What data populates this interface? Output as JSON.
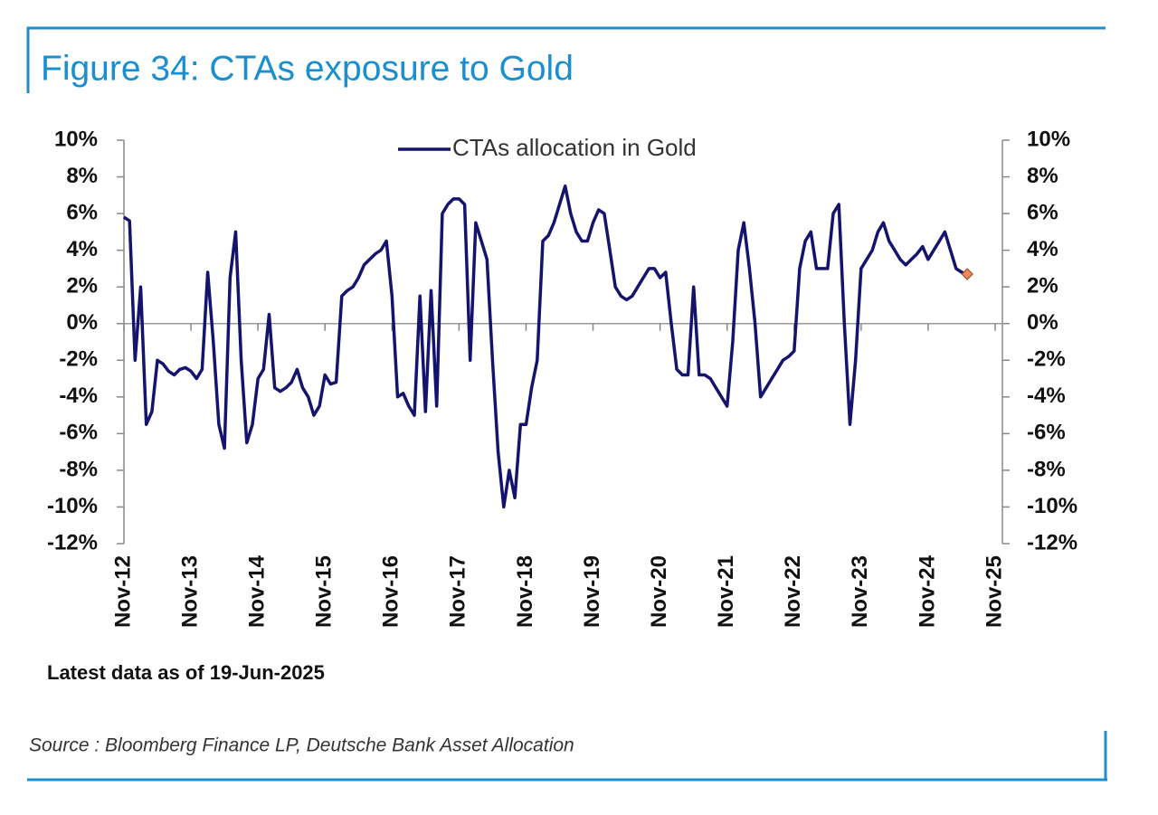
{
  "chart_data": {
    "type": "line",
    "title": "Figure 34: CTAs exposure to Gold",
    "note": "Latest data as of 19-Jun-2025",
    "source": "Source : Bloomberg Finance LP, Deutsche Bank Asset Allocation",
    "legend": "top",
    "grid": false,
    "xlim": [
      "2012-11",
      "2025-11"
    ],
    "xticks": [
      {
        "value": "2012-11",
        "label": "Nov-12"
      },
      {
        "value": "2013-11",
        "label": "Nov-13"
      },
      {
        "value": "2014-11",
        "label": "Nov-14"
      },
      {
        "value": "2015-11",
        "label": "Nov-15"
      },
      {
        "value": "2016-11",
        "label": "Nov-16"
      },
      {
        "value": "2017-11",
        "label": "Nov-17"
      },
      {
        "value": "2018-11",
        "label": "Nov-18"
      },
      {
        "value": "2019-11",
        "label": "Nov-19"
      },
      {
        "value": "2020-11",
        "label": "Nov-20"
      },
      {
        "value": "2021-11",
        "label": "Nov-21"
      },
      {
        "value": "2022-11",
        "label": "Nov-22"
      },
      {
        "value": "2023-11",
        "label": "Nov-23"
      },
      {
        "value": "2024-11",
        "label": "Nov-24"
      },
      {
        "value": "2025-11",
        "label": "Nov-25"
      }
    ],
    "ylim": [
      -12,
      10
    ],
    "yticks": [
      {
        "value": 10,
        "label": "10%"
      },
      {
        "value": 8,
        "label": "8%"
      },
      {
        "value": 6,
        "label": "6%"
      },
      {
        "value": 4,
        "label": "4%"
      },
      {
        "value": 2,
        "label": "2%"
      },
      {
        "value": 0,
        "label": "0%"
      },
      {
        "value": -2,
        "label": "-2%"
      },
      {
        "value": -4,
        "label": "-4%"
      },
      {
        "value": -6,
        "label": "-6%"
      },
      {
        "value": -8,
        "label": "-8%"
      },
      {
        "value": -10,
        "label": "-10%"
      },
      {
        "value": -12,
        "label": "-12%"
      }
    ],
    "y2lim": [
      -12,
      10
    ],
    "y2ticks": [
      {
        "value": 10,
        "label": "10%"
      },
      {
        "value": 8,
        "label": "8%"
      },
      {
        "value": 6,
        "label": "6%"
      },
      {
        "value": 4,
        "label": "4%"
      },
      {
        "value": 2,
        "label": "2%"
      },
      {
        "value": 0,
        "label": "0%"
      },
      {
        "value": -2,
        "label": "-2%"
      },
      {
        "value": -4,
        "label": "-4%"
      },
      {
        "value": -6,
        "label": "-6%"
      },
      {
        "value": -8,
        "label": "-8%"
      },
      {
        "value": -10,
        "label": "-10%"
      },
      {
        "value": -12,
        "label": "-12%"
      }
    ],
    "x": [
      "2012-11",
      "2012-12",
      "2013-01",
      "2013-02",
      "2013-03",
      "2013-04",
      "2013-05",
      "2013-06",
      "2013-07",
      "2013-08",
      "2013-09",
      "2013-10",
      "2013-11",
      "2013-12",
      "2014-01",
      "2014-02",
      "2014-03",
      "2014-04",
      "2014-05",
      "2014-06",
      "2014-07",
      "2014-08",
      "2014-09",
      "2014-10",
      "2014-11",
      "2014-12",
      "2015-01",
      "2015-02",
      "2015-03",
      "2015-04",
      "2015-05",
      "2015-06",
      "2015-07",
      "2015-08",
      "2015-09",
      "2015-10",
      "2015-11",
      "2015-12",
      "2016-01",
      "2016-02",
      "2016-03",
      "2016-04",
      "2016-05",
      "2016-06",
      "2016-07",
      "2016-08",
      "2016-09",
      "2016-10",
      "2016-11",
      "2016-12",
      "2017-01",
      "2017-02",
      "2017-03",
      "2017-04",
      "2017-05",
      "2017-06",
      "2017-07",
      "2017-08",
      "2017-09",
      "2017-10",
      "2017-11",
      "2017-12",
      "2018-01",
      "2018-02",
      "2018-03",
      "2018-04",
      "2018-05",
      "2018-06",
      "2018-07",
      "2018-08",
      "2018-09",
      "2018-10",
      "2018-11",
      "2018-12",
      "2019-01",
      "2019-02",
      "2019-03",
      "2019-04",
      "2019-05",
      "2019-06",
      "2019-07",
      "2019-08",
      "2019-09",
      "2019-10",
      "2019-11",
      "2019-12",
      "2020-01",
      "2020-02",
      "2020-03",
      "2020-04",
      "2020-05",
      "2020-06",
      "2020-07",
      "2020-08",
      "2020-09",
      "2020-10",
      "2020-11",
      "2020-12",
      "2021-01",
      "2021-02",
      "2021-03",
      "2021-04",
      "2021-05",
      "2021-06",
      "2021-07",
      "2021-08",
      "2021-09",
      "2021-10",
      "2021-11",
      "2021-12",
      "2022-01",
      "2022-02",
      "2022-03",
      "2022-04",
      "2022-05",
      "2022-06",
      "2022-07",
      "2022-08",
      "2022-09",
      "2022-10",
      "2022-11",
      "2022-12",
      "2023-01",
      "2023-02",
      "2023-03",
      "2023-04",
      "2023-05",
      "2023-06",
      "2023-07",
      "2023-08",
      "2023-09",
      "2023-10",
      "2023-11",
      "2023-12",
      "2024-01",
      "2024-02",
      "2024-03",
      "2024-04",
      "2024-05",
      "2024-06",
      "2024-07",
      "2024-08",
      "2024-09",
      "2024-10",
      "2024-11",
      "2024-12",
      "2025-01",
      "2025-02",
      "2025-03",
      "2025-04",
      "2025-05",
      "2025-06"
    ],
    "series": [
      {
        "name": "CTAs allocation in Gold",
        "color": "#14146e",
        "last_marker_color": "#f08a5d",
        "values": [
          5.8,
          5.6,
          -2,
          2,
          -5.5,
          -4.8,
          -2,
          -2.2,
          -2.6,
          -2.8,
          -2.5,
          -2.4,
          -2.6,
          -3,
          -2.5,
          2.8,
          -1,
          -5.5,
          -6.8,
          2.5,
          5,
          -2,
          -6.5,
          -5.5,
          -3,
          -2.5,
          0.5,
          -3.5,
          -3.7,
          -3.5,
          -3.2,
          -2.5,
          -3.5,
          -4,
          -5,
          -4.5,
          -2.8,
          -3.3,
          -3.2,
          1.5,
          1.8,
          2,
          2.5,
          3.2,
          3.5,
          3.8,
          4,
          4.5,
          1.5,
          -4,
          -3.8,
          -4.5,
          -5,
          1.5,
          -4.8,
          1.8,
          -4.5,
          6,
          6.5,
          6.8,
          6.8,
          6.5,
          -2,
          5.5,
          4.5,
          3.5,
          -2,
          -7,
          -10,
          -8,
          -9.5,
          -5.5,
          -5.5,
          -3.5,
          -2,
          4.5,
          4.8,
          5.5,
          6.5,
          7.5,
          6,
          5,
          4.5,
          4.5,
          5.5,
          6.2,
          6,
          4,
          2,
          1.5,
          1.3,
          1.5,
          2,
          2.5,
          3,
          3,
          2.5,
          2.8,
          0,
          -2.5,
          -2.8,
          -2.8,
          2,
          -2.8,
          -2.8,
          -3,
          -3.5,
          -4,
          -4.5,
          -1,
          4,
          5.5,
          3,
          0,
          -4,
          -3.5,
          -3,
          -2.5,
          -2,
          -1.8,
          -1.5,
          3,
          4.5,
          5,
          3,
          3,
          3,
          6,
          6.5,
          0,
          -5.5,
          -2,
          3,
          3.5,
          4,
          5,
          5.5,
          4.5,
          4,
          3.5,
          3.2,
          3.5,
          3.8,
          4.2,
          3.5,
          4,
          4.5,
          5,
          4,
          3,
          2.8,
          2.7
        ]
      }
    ]
  }
}
